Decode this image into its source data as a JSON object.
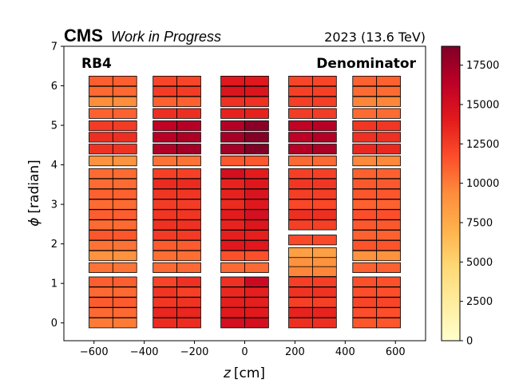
{
  "chart_data": {
    "type": "heatmap",
    "experiment_label": "CMS",
    "status_label": "Work in Progress",
    "run_label": "2023 (13.6 TeV)",
    "station_label": "RB4",
    "quantity_label": "Denominator",
    "xlabel_math": "z",
    "xlabel_unit": "[cm]",
    "ylabel_math": "ϕ",
    "ylabel_unit": "[radian]",
    "xlim": [
      -720,
      720
    ],
    "ylim": [
      -0.45,
      7
    ],
    "x_ticks": [
      -600,
      -400,
      -200,
      0,
      200,
      400,
      600
    ],
    "x_tick_labels": [
      "−600",
      "−400",
      "−200",
      "0",
      "200",
      "400",
      "600"
    ],
    "y_ticks": [
      0,
      1,
      2,
      3,
      4,
      5,
      6,
      7
    ],
    "y_tick_labels": [
      "0",
      "1",
      "2",
      "3",
      "4",
      "5",
      "6",
      "7"
    ],
    "colorbar": {
      "colormap": "YlOrRd",
      "range": [
        0,
        18700
      ],
      "ticks": [
        0,
        2500,
        5000,
        7500,
        10000,
        12500,
        15000,
        17500
      ],
      "tick_labels": [
        "0",
        "2500",
        "5000",
        "7500",
        "10000",
        "12500",
        "15000",
        "17500"
      ]
    },
    "wheels": [
      {
        "z_center": -525,
        "cells": [
          {
            "phi": 0.0,
            "left": 10000,
            "right": 10000
          },
          {
            "phi": 0.26,
            "left": 10700,
            "right": 10700
          },
          {
            "phi": 0.52,
            "left": 11200,
            "right": 11200
          },
          {
            "phi": 0.78,
            "left": 10700,
            "right": 10700
          },
          {
            "phi": 1.04,
            "left": 11100,
            "right": 11100
          },
          {
            "phi": 1.4,
            "left": 10300,
            "right": 10300
          },
          {
            "phi": 1.7,
            "left": 9000,
            "right": 9000
          },
          {
            "phi": 1.96,
            "left": 10300,
            "right": 10300
          },
          {
            "phi": 2.22,
            "left": 11400,
            "right": 11400
          },
          {
            "phi": 2.48,
            "left": 10600,
            "right": 10600
          },
          {
            "phi": 2.74,
            "left": 11100,
            "right": 11100
          },
          {
            "phi": 3.0,
            "left": 10600,
            "right": 10600
          },
          {
            "phi": 3.26,
            "left": 11000,
            "right": 11000
          },
          {
            "phi": 3.52,
            "left": 10600,
            "right": 10600
          },
          {
            "phi": 3.78,
            "left": 10600,
            "right": 10600
          },
          {
            "phi": 4.1,
            "left": 9000,
            "right": 9000
          },
          {
            "phi": 4.4,
            "left": 12900,
            "right": 12900
          },
          {
            "phi": 4.7,
            "left": 13100,
            "right": 13100
          },
          {
            "phi": 4.99,
            "left": 12500,
            "right": 12500
          },
          {
            "phi": 5.3,
            "left": 11000,
            "right": 11000
          },
          {
            "phi": 5.6,
            "left": 9300,
            "right": 9300
          },
          {
            "phi": 5.86,
            "left": 10700,
            "right": 10700
          },
          {
            "phi": 6.12,
            "left": 11100,
            "right": 11100
          }
        ]
      },
      {
        "z_center": -270,
        "cells": [
          {
            "phi": 0.0,
            "left": 13200,
            "right": 13200
          },
          {
            "phi": 0.26,
            "left": 13500,
            "right": 13500
          },
          {
            "phi": 0.52,
            "left": 12700,
            "right": 12900
          },
          {
            "phi": 0.78,
            "left": 12800,
            "right": 12300
          },
          {
            "phi": 1.04,
            "left": 12200,
            "right": 13000
          },
          {
            "phi": 1.4,
            "left": 10700,
            "right": 10700
          },
          {
            "phi": 1.7,
            "left": 10500,
            "right": 10500
          },
          {
            "phi": 1.96,
            "left": 11200,
            "right": 11200
          },
          {
            "phi": 2.22,
            "left": 12600,
            "right": 12600
          },
          {
            "phi": 2.48,
            "left": 13000,
            "right": 13000
          },
          {
            "phi": 2.74,
            "left": 12800,
            "right": 12800
          },
          {
            "phi": 3.0,
            "left": 12500,
            "right": 12500
          },
          {
            "phi": 3.26,
            "left": 12800,
            "right": 12800
          },
          {
            "phi": 3.52,
            "left": 13300,
            "right": 13300
          },
          {
            "phi": 3.78,
            "left": 12300,
            "right": 12300
          },
          {
            "phi": 4.1,
            "left": 10300,
            "right": 10300
          },
          {
            "phi": 4.4,
            "left": 16800,
            "right": 17300
          },
          {
            "phi": 4.7,
            "left": 16500,
            "right": 17000
          },
          {
            "phi": 4.99,
            "left": 16200,
            "right": 16600
          },
          {
            "phi": 5.3,
            "left": 13100,
            "right": 13100
          },
          {
            "phi": 5.6,
            "left": 11000,
            "right": 11000
          },
          {
            "phi": 5.86,
            "left": 12500,
            "right": 12500
          },
          {
            "phi": 6.12,
            "left": 12100,
            "right": 12100
          }
        ]
      },
      {
        "z_center": 0,
        "cells": [
          {
            "phi": 0.0,
            "left": 15000,
            "right": 15000
          },
          {
            "phi": 0.26,
            "left": 14100,
            "right": 14100
          },
          {
            "phi": 0.52,
            "left": 13800,
            "right": 13800
          },
          {
            "phi": 0.78,
            "left": 13400,
            "right": 13800
          },
          {
            "phi": 1.04,
            "left": 13000,
            "right": 15500
          },
          {
            "phi": 1.4,
            "left": 10700,
            "right": 10700
          },
          {
            "phi": 1.7,
            "left": 11600,
            "right": 11600
          },
          {
            "phi": 1.96,
            "left": 14200,
            "right": 14200
          },
          {
            "phi": 2.22,
            "left": 13800,
            "right": 13800
          },
          {
            "phi": 2.48,
            "left": 13600,
            "right": 14400
          },
          {
            "phi": 2.74,
            "left": 14000,
            "right": 14900
          },
          {
            "phi": 3.0,
            "left": 13300,
            "right": 14200
          },
          {
            "phi": 3.26,
            "left": 13700,
            "right": 14600
          },
          {
            "phi": 3.52,
            "left": 13600,
            "right": 14300
          },
          {
            "phi": 3.78,
            "left": 15000,
            "right": 14000
          },
          {
            "phi": 4.1,
            "left": 11300,
            "right": 11300
          },
          {
            "phi": 4.4,
            "left": 17300,
            "right": 18700
          },
          {
            "phi": 4.7,
            "left": 17200,
            "right": 18500
          },
          {
            "phi": 4.99,
            "left": 16700,
            "right": 18300
          },
          {
            "phi": 5.3,
            "left": 13700,
            "right": 13700
          },
          {
            "phi": 5.6,
            "left": 13000,
            "right": 13000
          },
          {
            "phi": 5.86,
            "left": 14500,
            "right": 14500
          },
          {
            "phi": 6.12,
            "left": 14200,
            "right": 14200
          }
        ]
      },
      {
        "z_center": 270,
        "cells": [
          {
            "phi": 0.0,
            "left": 13100,
            "right": 13100
          },
          {
            "phi": 0.26,
            "left": 13600,
            "right": 13600
          },
          {
            "phi": 0.52,
            "left": 12300,
            "right": 12300
          },
          {
            "phi": 0.78,
            "left": 12900,
            "right": 12900
          },
          {
            "phi": 1.04,
            "left": 12400,
            "right": 12400
          },
          {
            "phi": 1.3,
            "left": 9600,
            "right": 9600
          },
          {
            "phi": 1.55,
            "left": 9000,
            "right": 9000
          },
          {
            "phi": 1.78,
            "left": 8200,
            "right": 8200
          },
          {
            "phi": 2.1,
            "left": 11900,
            "right": 11900
          },
          {
            "phi": 2.48,
            "left": 12300,
            "right": 12300
          },
          {
            "phi": 2.74,
            "left": 13100,
            "right": 13100
          },
          {
            "phi": 3.0,
            "left": 12000,
            "right": 12000
          },
          {
            "phi": 3.26,
            "left": 12400,
            "right": 12400
          },
          {
            "phi": 3.52,
            "left": 12700,
            "right": 12700
          },
          {
            "phi": 3.78,
            "left": 12300,
            "right": 12300
          },
          {
            "phi": 4.1,
            "left": 10700,
            "right": 10700
          },
          {
            "phi": 4.4,
            "left": 16600,
            "right": 17000
          },
          {
            "phi": 4.7,
            "left": 16300,
            "right": 16800
          },
          {
            "phi": 4.99,
            "left": 16100,
            "right": 16600
          },
          {
            "phi": 5.3,
            "left": 12500,
            "right": 12500
          },
          {
            "phi": 5.6,
            "left": 12400,
            "right": 12400
          },
          {
            "phi": 5.86,
            "left": 12300,
            "right": 12300
          },
          {
            "phi": 6.12,
            "left": 12100,
            "right": 12100
          }
        ]
      },
      {
        "z_center": 525,
        "cells": [
          {
            "phi": 0.0,
            "left": 11400,
            "right": 11400
          },
          {
            "phi": 0.26,
            "left": 11700,
            "right": 11700
          },
          {
            "phi": 0.52,
            "left": 12100,
            "right": 12100
          },
          {
            "phi": 0.78,
            "left": 11700,
            "right": 11700
          },
          {
            "phi": 1.04,
            "left": 11600,
            "right": 11600
          },
          {
            "phi": 1.4,
            "left": 11000,
            "right": 11000
          },
          {
            "phi": 1.7,
            "left": 9000,
            "right": 9000
          },
          {
            "phi": 1.96,
            "left": 11500,
            "right": 11500
          },
          {
            "phi": 2.22,
            "left": 11000,
            "right": 11000
          },
          {
            "phi": 2.48,
            "left": 11300,
            "right": 11300
          },
          {
            "phi": 2.74,
            "left": 11700,
            "right": 11700
          },
          {
            "phi": 3.0,
            "left": 11000,
            "right": 11000
          },
          {
            "phi": 3.26,
            "left": 11400,
            "right": 11400
          },
          {
            "phi": 3.52,
            "left": 11300,
            "right": 11300
          },
          {
            "phi": 3.78,
            "left": 11000,
            "right": 11000
          },
          {
            "phi": 4.1,
            "left": 9500,
            "right": 9500
          },
          {
            "phi": 4.4,
            "left": 13400,
            "right": 13400
          },
          {
            "phi": 4.7,
            "left": 13000,
            "right": 13000
          },
          {
            "phi": 4.99,
            "left": 12700,
            "right": 12700
          },
          {
            "phi": 5.3,
            "left": 10600,
            "right": 10600
          },
          {
            "phi": 5.6,
            "left": 9600,
            "right": 9600
          },
          {
            "phi": 5.86,
            "left": 10600,
            "right": 10600
          },
          {
            "phi": 6.12,
            "left": 11000,
            "right": 11000
          }
        ]
      }
    ]
  }
}
